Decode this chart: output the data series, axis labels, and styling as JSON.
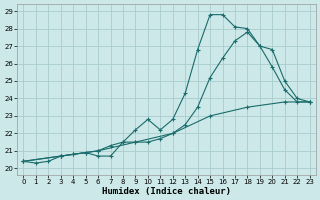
{
  "xlabel": "Humidex (Indice chaleur)",
  "xlim": [
    -0.5,
    23.5
  ],
  "ylim": [
    19.6,
    29.4
  ],
  "xticks": [
    0,
    1,
    2,
    3,
    4,
    5,
    6,
    7,
    8,
    9,
    10,
    11,
    12,
    13,
    14,
    15,
    16,
    17,
    18,
    19,
    20,
    21,
    22,
    23
  ],
  "yticks": [
    20,
    21,
    22,
    23,
    24,
    25,
    26,
    27,
    28,
    29
  ],
  "bg_color": "#cce8e8",
  "grid_color": "#aacccc",
  "line_color": "#1a6b6b",
  "line1_x": [
    0,
    1,
    2,
    3,
    4,
    5,
    6,
    7,
    8,
    9,
    10,
    11,
    12,
    13,
    14,
    15,
    16,
    17,
    18,
    19,
    20,
    21,
    22,
    23
  ],
  "line1_y": [
    20.4,
    20.3,
    20.4,
    20.7,
    20.8,
    20.9,
    20.7,
    20.7,
    21.5,
    22.2,
    22.8,
    22.2,
    22.8,
    24.3,
    26.8,
    28.8,
    28.8,
    28.1,
    28.0,
    27.0,
    25.8,
    24.5,
    23.8,
    23.8
  ],
  "line2_x": [
    0,
    3,
    4,
    5,
    6,
    7,
    8,
    9,
    10,
    11,
    12,
    13,
    14,
    15,
    16,
    17,
    18,
    19,
    20,
    21,
    22,
    23
  ],
  "line2_y": [
    20.4,
    20.7,
    20.8,
    20.9,
    21.0,
    21.3,
    21.5,
    21.5,
    21.5,
    21.7,
    22.0,
    22.5,
    23.5,
    25.2,
    26.3,
    27.3,
    27.8,
    27.0,
    26.8,
    25.0,
    24.0,
    23.8
  ],
  "line3_x": [
    0,
    3,
    6,
    9,
    12,
    15,
    18,
    21,
    23
  ],
  "line3_y": [
    20.4,
    20.7,
    21.0,
    21.5,
    22.0,
    23.0,
    23.5,
    23.8,
    23.8
  ]
}
